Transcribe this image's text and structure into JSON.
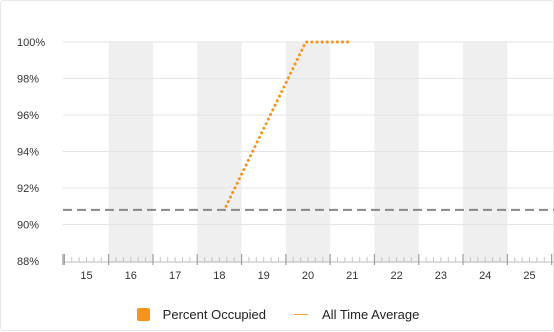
{
  "chart_data": {
    "type": "line",
    "x": [
      15,
      16,
      17,
      18,
      19,
      20,
      21,
      22,
      23,
      24,
      25
    ],
    "xlabel": "",
    "ylabel": "",
    "ylim": [
      88,
      100
    ],
    "yticks": [
      "88%",
      "90%",
      "92%",
      "94%",
      "96%",
      "98%",
      "100%"
    ],
    "grid": "horizontal",
    "shaded_bands": [
      16,
      18,
      20,
      22,
      24
    ],
    "series": [
      {
        "name": "Percent Occupied",
        "style": "dotted",
        "color": "#f7941d",
        "points": [
          [
            18.15,
            91.0
          ],
          [
            19.95,
            100.0
          ],
          [
            21.0,
            100.0
          ]
        ]
      }
    ],
    "reference_lines": [
      {
        "name": "All Time Average",
        "value": 90.8,
        "style": "dashed",
        "color": "#888888"
      }
    ],
    "legend": [
      {
        "label": "Percent Occupied",
        "marker": "box",
        "color": "#f7941d"
      },
      {
        "label": "All Time Average",
        "marker": "line",
        "color": "#f7a233"
      }
    ],
    "legend_position": "bottom"
  }
}
